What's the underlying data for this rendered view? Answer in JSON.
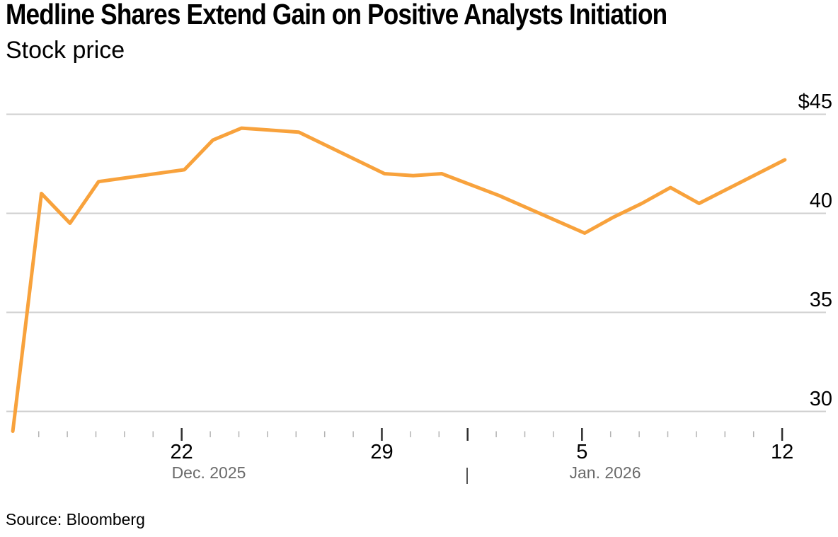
{
  "page": {
    "title": "Medline Shares Extend Gain on Positive Analysts Initiation",
    "subtitle": "Stock price",
    "source_label": "Source: Bloomberg"
  },
  "chart_data": {
    "type": "line",
    "title": "Medline Shares Extend Gain on Positive Analysts Initiation",
    "subtitle": "Stock price",
    "source": "Source: Bloomberg",
    "line_color": "#F8A23C",
    "grid_color": "#CFCFCF",
    "short_tick_color": "#B3B3B3",
    "tall_tick_color": "#2F2F2F",
    "ylim": [
      28.5,
      45.5
    ],
    "grid": true,
    "y_ticks": [
      {
        "label": "$45",
        "value": 45
      },
      {
        "label": "40",
        "value": 40
      },
      {
        "label": "35",
        "value": 35
      },
      {
        "label": "30",
        "value": 30
      }
    ],
    "x_tick_labels": [
      {
        "label": "22",
        "day": 5
      },
      {
        "label": "29",
        "day": 12
      },
      {
        "label": "5",
        "day": 19
      },
      {
        "label": "12",
        "day": 26
      }
    ],
    "tall_tick_days": [
      5,
      12,
      15,
      19,
      26
    ],
    "month_row": {
      "left": "Dec. 2025",
      "separator": "|",
      "right": "Jan. 2026"
    },
    "points": [
      {
        "date": "Dec. 16, 2025",
        "day": -1,
        "value": 29.0
      },
      {
        "date": "Dec. 17, 2025",
        "day": 0,
        "value": 41.0
      },
      {
        "date": "Dec. 18, 2025",
        "day": 1,
        "value": 39.5
      },
      {
        "date": "Dec. 19, 2025",
        "day": 2,
        "value": 41.6
      },
      {
        "date": "Dec. 22, 2025",
        "day": 5,
        "value": 42.2
      },
      {
        "date": "Dec. 23, 2025",
        "day": 6,
        "value": 43.7
      },
      {
        "date": "Dec. 24, 2025",
        "day": 7,
        "value": 44.3
      },
      {
        "date": "Dec. 26, 2025",
        "day": 9,
        "value": 44.1
      },
      {
        "date": "Dec. 29, 2025",
        "day": 12,
        "value": 42.0
      },
      {
        "date": "Dec. 30, 2025",
        "day": 13,
        "value": 41.9
      },
      {
        "date": "Dec. 31, 2025",
        "day": 14,
        "value": 42.0
      },
      {
        "date": "Jan. 2, 2026",
        "day": 16,
        "value": 40.9
      },
      {
        "date": "Jan. 5, 2026",
        "day": 19,
        "value": 39.0
      },
      {
        "date": "Jan. 6, 2026",
        "day": 20,
        "value": 39.8
      },
      {
        "date": "Jan. 7, 2026",
        "day": 21,
        "value": 40.5
      },
      {
        "date": "Jan. 8, 2026",
        "day": 22,
        "value": 41.3
      },
      {
        "date": "Jan. 9, 2026",
        "day": 23,
        "value": 40.5
      },
      {
        "date": "Jan. 12, 2026",
        "day": 26,
        "value": 42.7
      }
    ]
  }
}
